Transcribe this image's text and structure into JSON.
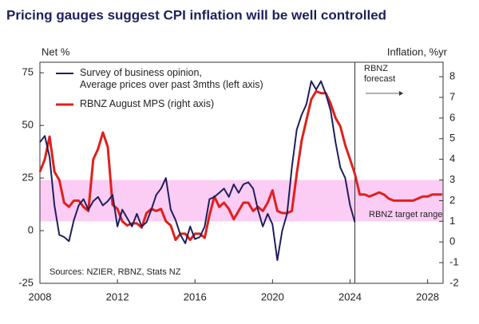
{
  "chart_data": {
    "type": "line",
    "title": "Pricing gauges suggest CPI inflation will be well controlled",
    "y_label": "Net %",
    "y2_label": "Inflation, %yr",
    "xlim": [
      2008,
      2028.8
    ],
    "xticks": [
      2008,
      2012,
      2016,
      2020,
      2024,
      2028
    ],
    "ylim": [
      -25,
      80
    ],
    "yticks": [
      -25,
      0,
      25,
      50,
      75
    ],
    "y2lim": [
      -2,
      8.7
    ],
    "y2ticks": [
      -2,
      -1,
      0,
      1,
      2,
      3,
      4,
      5,
      6,
      7,
      8
    ],
    "target_range": [
      1,
      3
    ],
    "target_label": "RBNZ target range",
    "forecast_start": 2024.25,
    "forecast_label": "RBNZ\nforecast",
    "source": "Sources: NZIER, RBNZ, Stats NZ",
    "series": [
      {
        "name": "Survey of business opinion,\nAverage prices over past 3mths (left axis)",
        "color": "#1f1f5c",
        "axis": "y",
        "x": [
          2008,
          2008.25,
          2008.5,
          2008.75,
          2009,
          2009.25,
          2009.5,
          2009.75,
          2010,
          2010.25,
          2010.5,
          2010.75,
          2011,
          2011.25,
          2011.5,
          2011.75,
          2012,
          2012.25,
          2012.5,
          2012.75,
          2013,
          2013.25,
          2013.5,
          2013.75,
          2014,
          2014.25,
          2014.5,
          2014.75,
          2015,
          2015.25,
          2015.5,
          2015.75,
          2016,
          2016.25,
          2016.5,
          2016.75,
          2017,
          2017.25,
          2017.5,
          2017.75,
          2018,
          2018.25,
          2018.5,
          2018.75,
          2019,
          2019.25,
          2019.5,
          2019.75,
          2020,
          2020.25,
          2020.5,
          2020.75,
          2021,
          2021.25,
          2021.5,
          2021.75,
          2022,
          2022.25,
          2022.5,
          2022.75,
          2023,
          2023.25,
          2023.5,
          2023.75,
          2024,
          2024.25
        ],
        "values": [
          42,
          45,
          35,
          12,
          -2,
          -3,
          -5,
          5,
          12,
          15,
          10,
          14,
          16,
          12,
          14,
          17,
          2,
          10,
          6,
          2,
          8,
          2,
          4,
          10,
          17,
          20,
          25,
          10,
          5,
          -2,
          -6,
          2,
          -4,
          -3,
          2,
          15,
          16,
          18,
          20,
          16,
          22,
          18,
          22,
          23,
          20,
          10,
          2,
          8,
          3,
          -14,
          0,
          8,
          30,
          48,
          55,
          60,
          71,
          67,
          71,
          65,
          57,
          42,
          30,
          25,
          12,
          4
        ]
      },
      {
        "name": "RBNZ August MPS (right axis)",
        "color": "#e0201b",
        "axis": "y2",
        "x": [
          2008,
          2008.25,
          2008.5,
          2008.75,
          2009,
          2009.25,
          2009.5,
          2009.75,
          2010,
          2010.25,
          2010.5,
          2010.75,
          2011,
          2011.25,
          2011.5,
          2011.75,
          2012,
          2012.25,
          2012.5,
          2012.75,
          2013,
          2013.25,
          2013.5,
          2013.75,
          2014,
          2014.25,
          2014.5,
          2014.75,
          2015,
          2015.25,
          2015.5,
          2015.75,
          2016,
          2016.25,
          2016.5,
          2016.75,
          2017,
          2017.25,
          2017.5,
          2017.75,
          2018,
          2018.25,
          2018.5,
          2018.75,
          2019,
          2019.25,
          2019.5,
          2019.75,
          2020,
          2020.25,
          2020.5,
          2020.75,
          2021,
          2021.25,
          2021.5,
          2021.75,
          2022,
          2022.25,
          2022.5,
          2022.75,
          2023,
          2023.25,
          2023.5,
          2023.75,
          2024,
          2024.25,
          2024.5,
          2024.75,
          2025,
          2025.25,
          2025.5,
          2025.75,
          2026,
          2026.25,
          2026.5,
          2026.75,
          2027,
          2027.25,
          2027.5,
          2027.75,
          2028,
          2028.25,
          2028.5,
          2028.75
        ],
        "values": [
          3.4,
          4.0,
          5.1,
          3.4,
          3.0,
          1.9,
          1.7,
          2.0,
          2.0,
          1.7,
          1.5,
          4.0,
          4.5,
          5.3,
          4.6,
          1.8,
          1.6,
          1.0,
          0.8,
          0.9,
          0.9,
          0.7,
          1.4,
          1.6,
          1.5,
          1.6,
          1.0,
          0.8,
          0.1,
          0.4,
          0.4,
          0.1,
          0.4,
          0.4,
          0.2,
          1.3,
          2.2,
          1.7,
          1.9,
          1.6,
          1.1,
          1.5,
          1.9,
          1.9,
          1.5,
          1.7,
          1.5,
          1.9,
          2.5,
          1.5,
          1.4,
          1.4,
          1.5,
          3.3,
          4.9,
          5.9,
          6.9,
          7.3,
          7.2,
          7.2,
          6.7,
          6.0,
          5.6,
          4.7,
          4.0,
          3.3,
          2.3,
          2.3,
          2.2,
          2.3,
          2.4,
          2.3,
          2.1,
          2.0,
          2.0,
          2.0,
          2.0,
          2.0,
          2.1,
          2.2,
          2.2,
          2.3,
          2.3,
          2.3
        ]
      }
    ]
  }
}
